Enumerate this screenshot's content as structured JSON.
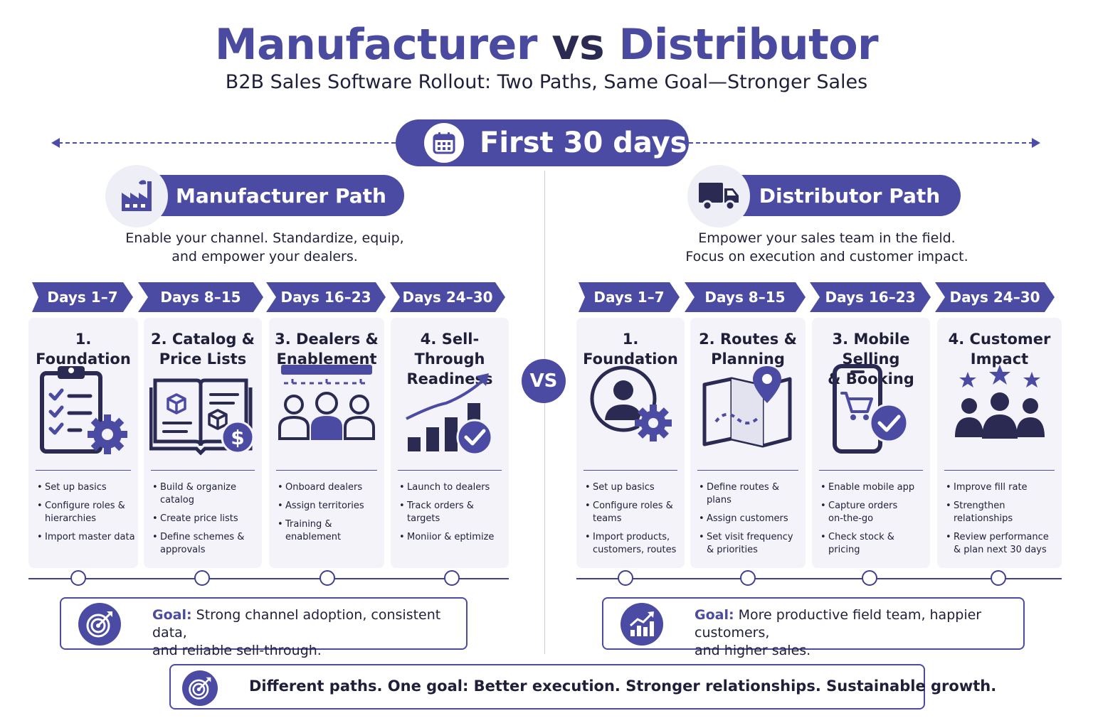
{
  "header": {
    "title_part1": "Manufacturer",
    "title_part2": "vs",
    "title_part3": "Distributor",
    "subtitle": "B2B Sales Software Rollout: Two Paths, Same Goal—Stronger Sales"
  },
  "timeline": {
    "label": "First 30 days",
    "icon": "calendar-icon"
  },
  "vs_label": "VS",
  "manufacturer": {
    "path_title": "Manufacturer Path",
    "icon": "factory-icon",
    "description": [
      "Enable your channel. Standardize, equip,",
      "and empower your dealers."
    ],
    "phases": [
      {
        "days": "Days 1–7",
        "title": [
          "1. Foundation"
        ],
        "icon": "clipboard-gear-icon",
        "items": [
          [
            "Set up basics"
          ],
          [
            "Configure roles &",
            "hierarchies"
          ],
          [
            "Import master data"
          ]
        ]
      },
      {
        "days": "Days 8–15",
        "title": [
          "2. Catalog &",
          "Price Lists"
        ],
        "icon": "catalog-dollar-icon",
        "items": [
          [
            "Build & organize catalog"
          ],
          [
            "Create price lists"
          ],
          [
            "Define schemes &",
            "approvals"
          ]
        ]
      },
      {
        "days": "Days 16–23",
        "title": [
          "3. Dealers &",
          "Enablement"
        ],
        "icon": "dealers-group-icon",
        "items": [
          [
            "Onboard dealers"
          ],
          [
            "Assign territories"
          ],
          [
            "Training & enablement"
          ]
        ]
      },
      {
        "days": "Days 24–30",
        "title": [
          "4. Sell-Through",
          "Readiness"
        ],
        "icon": "growth-chart-check-icon",
        "items": [
          [
            "Launch to dealers"
          ],
          [
            "Track orders & targets"
          ],
          [
            "Moniior & eptimize"
          ]
        ]
      }
    ],
    "goal": {
      "label": "Goal:",
      "text": [
        "Strong channel adoption, consistent data,",
        "and reliable sell-through."
      ],
      "icon": "target-icon"
    }
  },
  "distributor": {
    "path_title": "Distributor Path",
    "icon": "truck-icon",
    "description": [
      "Empower your sales team in the field.",
      "Focus on execution and customer impact."
    ],
    "phases": [
      {
        "days": "Days 1–7",
        "title": [
          "1. Foundation"
        ],
        "icon": "user-gear-icon",
        "items": [
          [
            "Set up basics"
          ],
          [
            "Configure roles & teams"
          ],
          [
            "Import products,",
            "customers, routes"
          ]
        ]
      },
      {
        "days": "Days 8–15",
        "title": [
          "2. Routes &",
          "Planning"
        ],
        "icon": "map-route-icon",
        "items": [
          [
            "Define routes & plans"
          ],
          [
            "Assign customers"
          ],
          [
            "Set visit frequency",
            "& priorities"
          ]
        ]
      },
      {
        "days": "Days 16–23",
        "title": [
          "3. Mobile Selling",
          "& Booking"
        ],
        "icon": "mobile-cart-icon",
        "items": [
          [
            "Enable mobile app"
          ],
          [
            "Capture orders",
            "on-the-go"
          ],
          [
            "Check stock & pricing"
          ]
        ]
      },
      {
        "days": "Days 24–30",
        "title": [
          "4. Customer",
          "Impact"
        ],
        "icon": "customers-stars-icon",
        "items": [
          [
            "Improve fill rate"
          ],
          [
            "Strengthen relationships"
          ],
          [
            "Review performance",
            "& plan next 30 days"
          ]
        ]
      }
    ],
    "goal": {
      "label": "Goal:",
      "text": [
        "More productive field team, happier customers,",
        "and higher sales."
      ],
      "icon": "growth-icon"
    }
  },
  "footer": {
    "text": "Different paths. One goal: Better execution. Stronger relationships. Sustainable growth.",
    "icon": "target-icon"
  },
  "colors": {
    "primary": "#4b4ba3",
    "title": "#4a4aa0",
    "dark": "#1f1f3a",
    "card": "#f3f3f9"
  }
}
